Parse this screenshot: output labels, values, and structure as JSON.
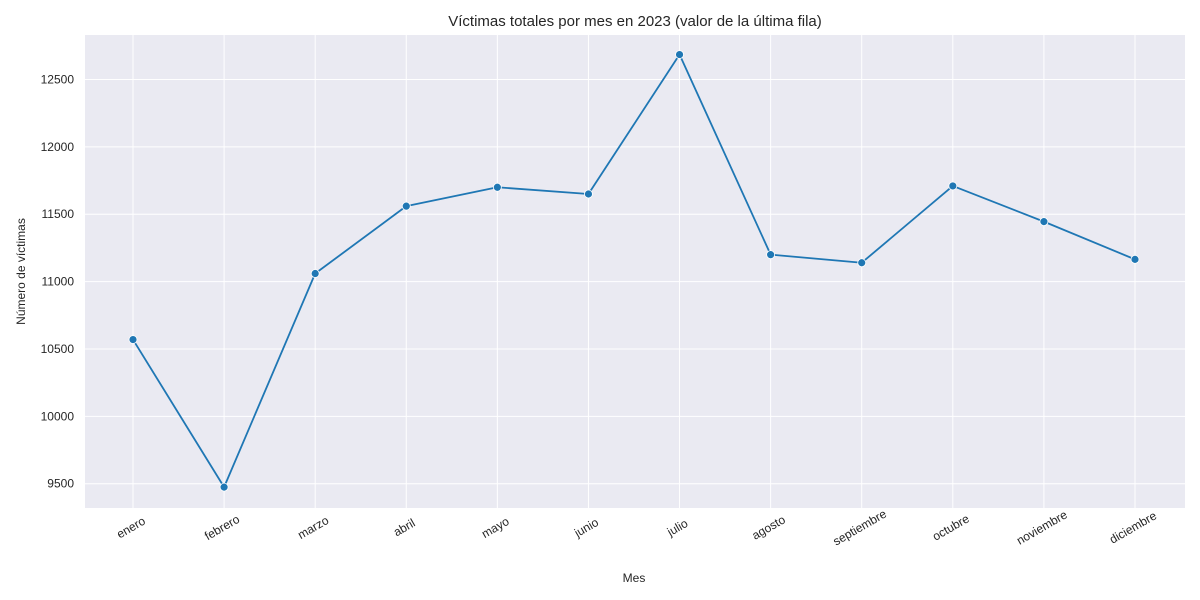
{
  "chart_data": {
    "type": "line",
    "title": "Víctimas totales por mes en 2023 (valor de la última fila)",
    "xlabel": "Mes",
    "ylabel": "Número de víctimas",
    "categories": [
      "enero",
      "febrero",
      "marzo",
      "abril",
      "mayo",
      "junio",
      "julio",
      "agosto",
      "septiembre",
      "octubre",
      "noviembre",
      "diciembre"
    ],
    "values": [
      10570,
      9475,
      11060,
      11560,
      11700,
      11650,
      12685,
      11200,
      11140,
      11710,
      11445,
      11165
    ],
    "ylim": [
      9320,
      12830
    ],
    "yticks": [
      9500,
      10000,
      10500,
      11000,
      11500,
      12000,
      12500
    ],
    "grid": true,
    "legend": "none",
    "colors": {
      "plot_background": "#eaeaf2",
      "grid": "#ffffff",
      "series": "#1f77b4",
      "text": "#262626"
    }
  }
}
